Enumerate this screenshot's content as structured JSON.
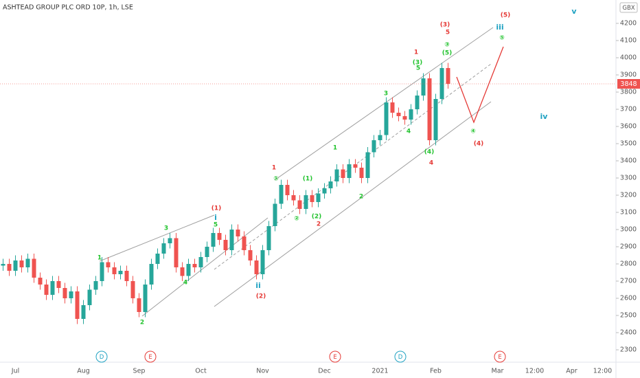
{
  "chart_data": {
    "type": "candlestick",
    "title": "ASHTEAD GROUP PLC ORD 10P, 1h, LSE",
    "currency": "GBX",
    "last_price": 3848,
    "up_color": "#26a69a",
    "down_color": "#ef5350",
    "grid": false,
    "ylim": [
      2228,
      4336
    ],
    "yticks": [
      2300,
      2400,
      2500,
      2600,
      2700,
      2800,
      2900,
      3000,
      3100,
      3200,
      3300,
      3400,
      3500,
      3600,
      3700,
      3800,
      3900,
      4000,
      4100,
      4200
    ],
    "categories": [
      null,
      null,
      "Jul",
      null,
      null,
      null,
      null,
      null,
      null,
      null,
      null,
      null,
      null,
      "Aug",
      null,
      null,
      null,
      null,
      null,
      null,
      null,
      null,
      "Sep",
      null,
      null,
      null,
      null,
      null,
      null,
      null,
      null,
      null,
      "Oct",
      null,
      null,
      null,
      null,
      null,
      null,
      null,
      null,
      null,
      "Nov",
      null,
      null,
      null,
      null,
      null,
      null,
      null,
      null,
      null,
      "Dec",
      null,
      null,
      null,
      null,
      null,
      null,
      null,
      null,
      "2021",
      null,
      null,
      null,
      null,
      null,
      null,
      null,
      null,
      "Feb",
      null,
      null,
      null,
      null,
      null,
      null,
      null,
      null,
      null,
      "Mar",
      null,
      null,
      null,
      null,
      null,
      "12:00",
      null,
      null,
      null,
      null,
      null,
      "Apr",
      null,
      null,
      null,
      null,
      "12:00",
      null,
      null
    ],
    "open": [
      2790,
      2800,
      2760,
      2820,
      2780,
      2830,
      2720,
      2680,
      2620,
      2700,
      2660,
      2600,
      2640,
      2480,
      2560,
      2650,
      2700,
      2810,
      2780,
      2740,
      2760,
      2700,
      2600,
      2520,
      2680,
      2800,
      2860,
      2920,
      2950,
      2780,
      2730,
      2800,
      2780,
      2840,
      2900,
      2980,
      2940,
      2880,
      3000,
      2960,
      2880,
      2820,
      2740,
      2880,
      3020,
      3150,
      3260,
      3200,
      3170,
      3120,
      3200,
      3160,
      3210,
      3240,
      3280,
      3350,
      3300,
      3380,
      3360,
      3300,
      3450,
      3520,
      3550,
      3740,
      3680,
      3660,
      3640,
      3700,
      3780,
      3880,
      3520,
      3760,
      3940,
      null,
      null,
      null,
      null,
      null,
      null,
      null,
      null,
      null,
      null,
      null,
      null,
      null,
      null,
      null,
      null,
      null,
      null,
      null,
      null,
      null,
      null,
      null,
      null,
      null,
      null,
      null
    ],
    "high": [
      2830,
      2830,
      2850,
      2850,
      2860,
      2860,
      2750,
      2710,
      2730,
      2730,
      2690,
      2670,
      2670,
      2590,
      2680,
      2730,
      2840,
      2840,
      2810,
      2790,
      2790,
      2730,
      2630,
      2710,
      2830,
      2890,
      2950,
      2980,
      2980,
      2810,
      2830,
      2830,
      2870,
      2930,
      3010,
      3010,
      2970,
      3030,
      3030,
      2990,
      2910,
      2850,
      2910,
      3050,
      3180,
      3290,
      3290,
      3230,
      3200,
      3230,
      3230,
      3240,
      3270,
      3310,
      3380,
      3380,
      3410,
      3410,
      3390,
      3480,
      3550,
      3580,
      3770,
      3770,
      3710,
      3690,
      3730,
      3810,
      3910,
      3910,
      3790,
      3970,
      3970,
      null,
      null,
      null,
      null,
      null,
      null,
      null,
      null,
      null,
      null,
      null,
      null,
      null,
      null,
      null,
      null,
      null,
      null,
      null,
      null,
      null,
      null,
      null,
      null,
      null,
      null,
      null
    ],
    "low": [
      2760,
      2730,
      2730,
      2750,
      2750,
      2690,
      2650,
      2590,
      2590,
      2630,
      2570,
      2570,
      2450,
      2450,
      2530,
      2620,
      2670,
      2750,
      2710,
      2710,
      2670,
      2570,
      2490,
      2490,
      2650,
      2770,
      2830,
      2890,
      2750,
      2700,
      2700,
      2750,
      2750,
      2810,
      2870,
      2910,
      2850,
      2850,
      2930,
      2850,
      2790,
      2710,
      2710,
      2850,
      2990,
      3120,
      3170,
      3140,
      3090,
      3090,
      3130,
      3130,
      3180,
      3210,
      3250,
      3270,
      3270,
      3330,
      3270,
      3270,
      3420,
      3490,
      3520,
      3650,
      3630,
      3610,
      3610,
      3670,
      3750,
      3490,
      3490,
      3730,
      3820,
      null,
      null,
      null,
      null,
      null,
      null,
      null,
      null,
      null,
      null,
      null,
      null,
      null,
      null,
      null,
      null,
      null,
      null,
      null,
      null,
      null,
      null,
      null,
      null,
      null,
      null,
      null
    ],
    "close": [
      2800,
      2760,
      2820,
      2780,
      2830,
      2720,
      2680,
      2620,
      2700,
      2660,
      2600,
      2640,
      2480,
      2560,
      2650,
      2700,
      2810,
      2780,
      2740,
      2760,
      2700,
      2600,
      2520,
      2680,
      2800,
      2860,
      2920,
      2950,
      2780,
      2730,
      2800,
      2780,
      2840,
      2900,
      2980,
      2940,
      2880,
      3000,
      2960,
      2880,
      2820,
      2740,
      2880,
      3020,
      3150,
      3260,
      3200,
      3170,
      3120,
      3200,
      3160,
      3210,
      3240,
      3280,
      3350,
      3300,
      3380,
      3360,
      3300,
      3450,
      3520,
      3550,
      3740,
      3680,
      3660,
      3640,
      3700,
      3780,
      3880,
      3520,
      3760,
      3940,
      3848,
      null,
      null,
      null,
      null,
      null,
      null,
      null,
      null,
      null,
      null,
      null,
      null,
      null,
      null,
      null,
      null,
      null,
      null,
      null,
      null,
      null,
      null,
      null,
      null,
      null,
      null,
      null
    ],
    "annotations": [
      {
        "text": "1",
        "color": "#22c32e"
      },
      {
        "text": "3",
        "color": "#22c32e"
      },
      {
        "text": "4",
        "color": "#22c32e"
      },
      {
        "text": "2",
        "color": "#22c32e"
      },
      {
        "text": "(1)",
        "color": "#e53935"
      },
      {
        "text": "i",
        "color": "#1fa2c2"
      },
      {
        "text": "5",
        "color": "#22c32e"
      },
      {
        "text": "ii",
        "color": "#1fa2c2"
      },
      {
        "text": "(2)",
        "color": "#e53935"
      },
      {
        "text": "1",
        "color": "#e53935"
      },
      {
        "text": "①",
        "color": "#22c32e"
      },
      {
        "text": "(1)",
        "color": "#22c32e"
      },
      {
        "text": "②",
        "color": "#22c32e"
      },
      {
        "text": "(2)",
        "color": "#22c32e"
      },
      {
        "text": "2",
        "color": "#e53935"
      },
      {
        "text": "1",
        "color": "#22c32e"
      },
      {
        "text": "2",
        "color": "#22c32e"
      },
      {
        "text": "3",
        "color": "#22c32e"
      },
      {
        "text": "4",
        "color": "#22c32e"
      },
      {
        "text": "1",
        "color": "#e53935"
      },
      {
        "text": "(3)",
        "color": "#22c32e"
      },
      {
        "text": "5",
        "color": "#22c32e"
      },
      {
        "text": "(4)",
        "color": "#22c32e"
      },
      {
        "text": "4",
        "color": "#e53935"
      },
      {
        "text": "(3)",
        "color": "#e53935"
      },
      {
        "text": "5",
        "color": "#e53935"
      },
      {
        "text": "③",
        "color": "#22c32e"
      },
      {
        "text": "(5)",
        "color": "#22c32e"
      },
      {
        "text": "(5)",
        "color": "#e53935"
      },
      {
        "text": "v",
        "color": "#1fa2c2"
      },
      {
        "text": "iii",
        "color": "#1fa2c2"
      },
      {
        "text": "⑤",
        "color": "#22c32e"
      },
      {
        "text": "④",
        "color": "#22c32e"
      },
      {
        "text": "(4)",
        "color": "#e53935"
      },
      {
        "text": "iv",
        "color": "#1fa2c2"
      }
    ],
    "events": [
      {
        "label": "D",
        "color": "#1fa2c2"
      },
      {
        "label": "E",
        "color": "#e53935"
      },
      {
        "label": "E",
        "color": "#e53935"
      },
      {
        "label": "D",
        "color": "#1fa2c2"
      },
      {
        "label": "E",
        "color": "#e53935"
      }
    ]
  }
}
